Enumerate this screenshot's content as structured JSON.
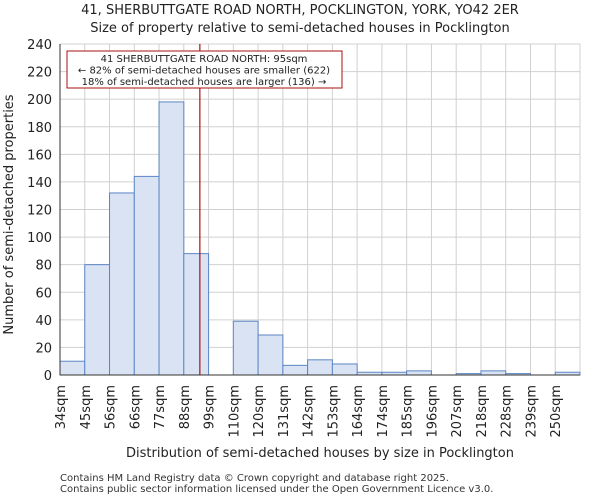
{
  "chart_data": {
    "type": "bar",
    "title_line1": "41, SHERBUTTGATE ROAD NORTH, POCKLINGTON, YORK, YO42 2ER",
    "title_line2": "Size of property relative to semi-detached houses in Pocklington",
    "xlabel": "Distribution of semi-detached houses by size in Pocklington",
    "ylabel": "Number of semi-detached properties",
    "categories": [
      "34sqm",
      "45sqm",
      "56sqm",
      "66sqm",
      "77sqm",
      "88sqm",
      "99sqm",
      "110sqm",
      "120sqm",
      "131sqm",
      "142sqm",
      "153sqm",
      "164sqm",
      "174sqm",
      "185sqm",
      "196sqm",
      "207sqm",
      "218sqm",
      "228sqm",
      "239sqm",
      "250sqm"
    ],
    "values": [
      10,
      80,
      132,
      144,
      198,
      88,
      0,
      39,
      29,
      7,
      11,
      8,
      2,
      2,
      3,
      0,
      1,
      3,
      1,
      0,
      2
    ],
    "ylim": [
      0,
      240
    ],
    "yticks": [
      0,
      20,
      40,
      60,
      80,
      100,
      120,
      140,
      160,
      180,
      200,
      220,
      240
    ],
    "marker_value": 95,
    "annotation": {
      "line1": "41 SHERBUTTGATE ROAD NORTH: 95sqm",
      "line2": "← 82% of semi-detached houses are smaller (622)",
      "line3": "18% of semi-detached houses are larger (136) →"
    },
    "colors": {
      "bar_fill": "#dae3f3",
      "bar_stroke": "#5b86c5",
      "marker": "#aa1111",
      "annotation_border": "#aa1111",
      "grid": "#d0d0d0"
    }
  },
  "footer": {
    "line1": "Contains HM Land Registry data © Crown copyright and database right 2025.",
    "line2": "Contains public sector information licensed under the Open Government Licence v3.0."
  }
}
